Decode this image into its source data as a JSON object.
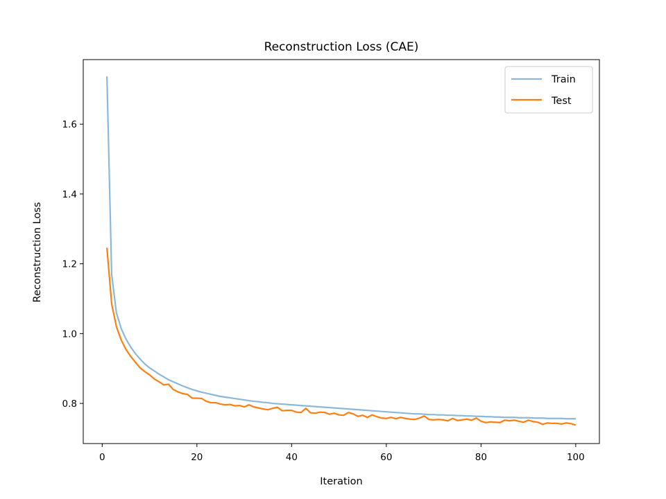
{
  "chart_data": {
    "type": "line",
    "title": "Reconstruction Loss (CAE)",
    "xlabel": "Iteration",
    "ylabel": "Reconstruction Loss",
    "xlim": [
      -4,
      105
    ],
    "ylim": [
      0.685,
      1.785
    ],
    "xticks": [
      0,
      20,
      40,
      60,
      80,
      100
    ],
    "yticks": [
      0.8,
      1.0,
      1.2,
      1.4,
      1.6
    ],
    "xtick_labels": [
      "0",
      "20",
      "40",
      "60",
      "80",
      "100"
    ],
    "ytick_labels": [
      "0.8",
      "1.0",
      "1.2",
      "1.4",
      "1.6"
    ],
    "grid": false,
    "legend": {
      "position": "top-right"
    },
    "x": [
      1,
      2,
      3,
      4,
      5,
      6,
      7,
      8,
      9,
      10,
      11,
      12,
      13,
      14,
      15,
      16,
      17,
      18,
      19,
      20,
      21,
      22,
      23,
      24,
      25,
      26,
      27,
      28,
      29,
      30,
      31,
      32,
      33,
      34,
      35,
      36,
      37,
      38,
      39,
      40,
      41,
      42,
      43,
      44,
      45,
      46,
      47,
      48,
      49,
      50,
      51,
      52,
      53,
      54,
      55,
      56,
      57,
      58,
      59,
      60,
      61,
      62,
      63,
      64,
      65,
      66,
      67,
      68,
      69,
      70,
      71,
      72,
      73,
      74,
      75,
      76,
      77,
      78,
      79,
      80,
      81,
      82,
      83,
      84,
      85,
      86,
      87,
      88,
      89,
      90,
      91,
      92,
      93,
      94,
      95,
      96,
      97,
      98,
      99,
      100
    ],
    "series": [
      {
        "name": "Train",
        "color": "#8bb8d8",
        "values": [
          1.737,
          1.17,
          1.06,
          1.015,
          0.985,
          0.962,
          0.943,
          0.927,
          0.913,
          0.902,
          0.893,
          0.884,
          0.876,
          0.868,
          0.862,
          0.856,
          0.85,
          0.845,
          0.84,
          0.836,
          0.832,
          0.829,
          0.826,
          0.823,
          0.82,
          0.818,
          0.816,
          0.814,
          0.812,
          0.81,
          0.808,
          0.806,
          0.805,
          0.803,
          0.802,
          0.8,
          0.799,
          0.798,
          0.797,
          0.796,
          0.795,
          0.794,
          0.793,
          0.792,
          0.791,
          0.79,
          0.789,
          0.788,
          0.787,
          0.786,
          0.785,
          0.784,
          0.783,
          0.782,
          0.781,
          0.78,
          0.779,
          0.778,
          0.777,
          0.776,
          0.775,
          0.774,
          0.773,
          0.772,
          0.771,
          0.77,
          0.77,
          0.769,
          0.768,
          0.768,
          0.767,
          0.767,
          0.766,
          0.766,
          0.765,
          0.765,
          0.764,
          0.764,
          0.763,
          0.763,
          0.762,
          0.762,
          0.761,
          0.761,
          0.76,
          0.76,
          0.76,
          0.759,
          0.759,
          0.759,
          0.758,
          0.758,
          0.758,
          0.757,
          0.757,
          0.757,
          0.757,
          0.756,
          0.756,
          0.756
        ]
      },
      {
        "name": "Test",
        "color": "#ff7f0e",
        "values": [
          1.246,
          1.085,
          1.02,
          0.982,
          0.955,
          0.935,
          0.918,
          0.902,
          0.891,
          0.882,
          0.87,
          0.862,
          0.853,
          0.855,
          0.84,
          0.833,
          0.828,
          0.826,
          0.815,
          0.815,
          0.814,
          0.806,
          0.802,
          0.802,
          0.798,
          0.796,
          0.797,
          0.793,
          0.794,
          0.79,
          0.796,
          0.79,
          0.787,
          0.784,
          0.782,
          0.786,
          0.789,
          0.779,
          0.78,
          0.78,
          0.775,
          0.774,
          0.786,
          0.773,
          0.772,
          0.775,
          0.774,
          0.769,
          0.772,
          0.767,
          0.766,
          0.774,
          0.77,
          0.763,
          0.766,
          0.76,
          0.767,
          0.762,
          0.758,
          0.757,
          0.76,
          0.756,
          0.76,
          0.757,
          0.755,
          0.754,
          0.758,
          0.764,
          0.754,
          0.753,
          0.754,
          0.753,
          0.75,
          0.757,
          0.751,
          0.753,
          0.755,
          0.752,
          0.758,
          0.749,
          0.745,
          0.747,
          0.746,
          0.745,
          0.752,
          0.75,
          0.752,
          0.749,
          0.746,
          0.752,
          0.748,
          0.746,
          0.74,
          0.744,
          0.743,
          0.743,
          0.741,
          0.744,
          0.742,
          0.738
        ]
      }
    ]
  }
}
